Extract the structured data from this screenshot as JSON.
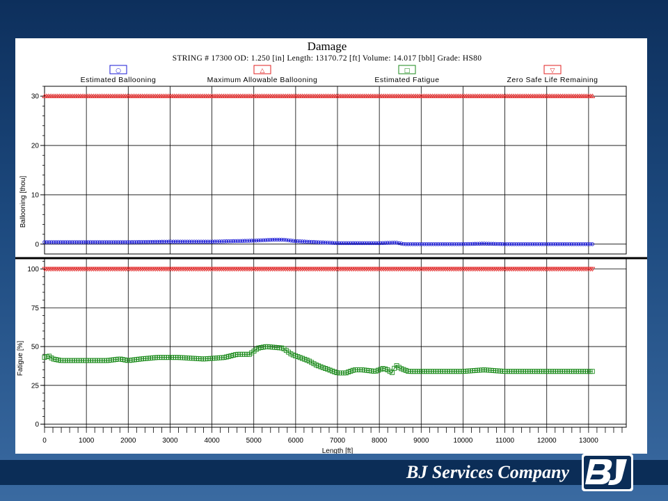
{
  "slide": {
    "company_name": "BJ Services Company",
    "logo_text": "BJ"
  },
  "chart_data": {
    "type": "line",
    "title": "Damage",
    "subtitle": "STRING # 17300 OD: 1.250 [in] Length: 13170.72 [ft] Volume: 14.017 [bbl]  Grade: HS80",
    "xlabel": "Length [ft]",
    "xlim": [
      0,
      13900
    ],
    "x_ticks": [
      "0",
      "1000",
      "2000",
      "3000",
      "4000",
      "5000",
      "6000",
      "7000",
      "8000",
      "9000",
      "10000",
      "11000",
      "12000",
      "13000"
    ],
    "legend_position": "top",
    "grid": true,
    "legend": [
      {
        "label": "Estimated Ballooning",
        "marker": "○",
        "color": "#1a1ad6"
      },
      {
        "label": "Maximum Allowable Ballooning",
        "marker": "△",
        "color": "#e01f1f"
      },
      {
        "label": "Estimated Fatigue",
        "marker": "□",
        "color": "#1a8a1a"
      },
      {
        "label": "Zero Safe Life Remaining",
        "marker": "▽",
        "color": "#e01f1f"
      }
    ],
    "panels": [
      {
        "ylabel": "Ballooning [thou]",
        "ylim": [
          -2,
          32
        ],
        "y_ticks": [
          "0",
          "10",
          "20",
          "30"
        ],
        "y_tick_values": [
          0,
          10,
          20,
          30
        ],
        "series": [
          {
            "name": "Estimated Ballooning",
            "marker": "circle",
            "color": "#1a1ad6",
            "x": [
              0,
              1000,
              2000,
              3000,
              4000,
              4500,
              5000,
              5500,
              5700,
              6000,
              6500,
              7000,
              7500,
              8000,
              8400,
              8600,
              9000,
              10000,
              10500,
              11000,
              12000,
              13100
            ],
            "y": [
              0.4,
              0.4,
              0.4,
              0.5,
              0.5,
              0.6,
              0.7,
              0.9,
              0.9,
              0.6,
              0.4,
              0.2,
              0.2,
              0.2,
              0.3,
              0.0,
              0.0,
              0.0,
              0.1,
              0.0,
              0.0,
              0.0
            ]
          },
          {
            "name": "Maximum Allowable Ballooning",
            "marker": "triangle-up",
            "color": "#e01f1f",
            "x": [
              0,
              13100
            ],
            "y": [
              30,
              30
            ]
          }
        ]
      },
      {
        "ylabel": "Fatigue [%]",
        "ylim": [
          -2,
          107
        ],
        "y_ticks": [
          "0",
          "25",
          "50",
          "75",
          "100"
        ],
        "y_tick_values": [
          0,
          25,
          50,
          75,
          100
        ],
        "series": [
          {
            "name": "Estimated Fatigue",
            "marker": "square",
            "color": "#1a8a1a",
            "x": [
              0,
              100,
              200,
              400,
              800,
              1500,
              1800,
              2000,
              2300,
              2700,
              3200,
              3800,
              4300,
              4600,
              4900,
              5100,
              5300,
              5700,
              5900,
              6100,
              6300,
              6500,
              6800,
              7000,
              7200,
              7400,
              7600,
              7900,
              8100,
              8200,
              8300,
              8400,
              8500,
              8700,
              9000,
              10000,
              10500,
              11000,
              12000,
              13100
            ],
            "y": [
              43,
              44,
              42,
              41,
              41,
              41,
              42,
              41,
              42,
              43,
              43,
              42,
              43,
              45,
              45,
              49,
              50,
              49,
              45,
              43,
              41,
              38,
              35,
              33,
              33,
              35,
              35,
              34,
              36,
              35,
              33,
              38,
              36,
              34,
              34,
              34,
              35,
              34,
              34,
              34
            ]
          },
          {
            "name": "Zero Safe Life Remaining",
            "marker": "triangle-down",
            "color": "#e01f1f",
            "x": [
              0,
              13100
            ],
            "y": [
              100,
              100
            ]
          }
        ]
      }
    ]
  }
}
